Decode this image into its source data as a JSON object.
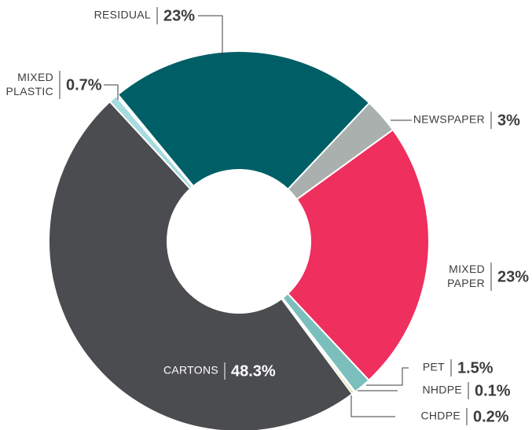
{
  "chart_data": {
    "type": "donut",
    "categories": [
      "RESIDUAL",
      "NEWSPAPER",
      "MIXED PAPER",
      "PET",
      "NHDPE",
      "CHDPE",
      "CARTONS",
      "MIXED PLASTIC"
    ],
    "values": [
      23,
      3,
      23,
      1.5,
      0.1,
      0.2,
      48.3,
      0.7
    ],
    "value_labels": [
      "23%",
      "3%",
      "23%",
      "1.5%",
      "0.1%",
      "0.2%",
      "48.3%",
      "0.7%"
    ],
    "colors": [
      "#005f66",
      "#a9b0ae",
      "#ef2f5e",
      "#7bbfbd",
      "#2d6b6a",
      "#c8d66a",
      "#4b4c50",
      "#a6dbe0"
    ]
  }
}
